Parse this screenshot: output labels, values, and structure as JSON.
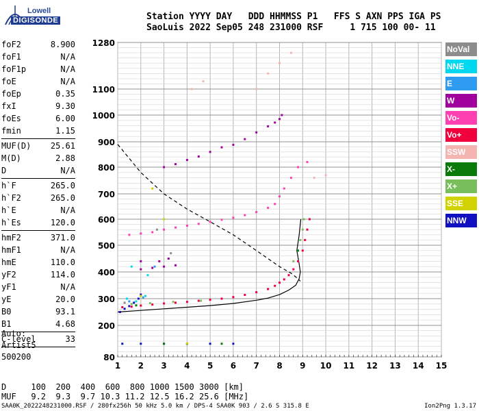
{
  "logo": {
    "line1": "Lowell",
    "line2": "DIGISONDE"
  },
  "header": {
    "line1": "Station YYYY DAY   DDD HHMMSS P1   FFS S AXN PPS IGA PS",
    "line2": "SaoLuis 2022 Sep05 248 231000 RSF     1 715 100 00- 11"
  },
  "params": [
    {
      "group": [
        [
          "foF2",
          "8.900"
        ],
        [
          "foF1",
          "N/A"
        ],
        [
          "foF1p",
          "N/A"
        ],
        [
          "foE",
          "N/A"
        ],
        [
          "foEp",
          "0.35"
        ],
        [
          "fxI",
          "9.30"
        ],
        [
          "foEs",
          "6.00"
        ],
        [
          "fmin",
          "1.15"
        ]
      ]
    },
    {
      "group": [
        [
          "MUF(D)",
          "25.61"
        ],
        [
          "M(D)",
          "2.88"
        ],
        [
          "D",
          "N/A"
        ]
      ]
    },
    {
      "group": [
        [
          "h`F",
          "265.0"
        ],
        [
          "h`F2",
          "265.0"
        ],
        [
          "h`E",
          "N/A"
        ],
        [
          "h`Es",
          "120.0"
        ]
      ]
    },
    {
      "group": [
        [
          "hmF2",
          "371.0"
        ],
        [
          "hmF1",
          "N/A"
        ],
        [
          "hmE",
          "110.0"
        ],
        [
          "yF2",
          "114.0"
        ],
        [
          "yF1",
          "N/A"
        ],
        [
          "yE",
          "20.0"
        ],
        [
          "B0",
          "93.1"
        ],
        [
          "B1",
          "4.68"
        ]
      ]
    },
    {
      "group": [
        [
          "C-level",
          "33"
        ]
      ]
    }
  ],
  "auto": {
    "label": "Auto:",
    "artist": "Artist5",
    "version": "500200"
  },
  "legend": [
    {
      "label": "NoVal",
      "color": "#8c8c8c"
    },
    {
      "label": "NNE",
      "color": "#00d8f0"
    },
    {
      "label": "E",
      "color": "#2d9bf0"
    },
    {
      "label": "W",
      "color": "#a0009c"
    },
    {
      "label": "Vo-",
      "color": "#ff40b0"
    },
    {
      "label": "Vo+",
      "color": "#f0003c"
    },
    {
      "label": "SSW",
      "color": "#f4b4b0"
    },
    {
      "label": "X-",
      "color": "#0a7a0a"
    },
    {
      "label": "X+",
      "color": "#78be5a"
    },
    {
      "label": "SSE",
      "color": "#d2d200"
    },
    {
      "label": "NNW",
      "color": "#1010c0"
    }
  ],
  "dmuf": {
    "line1": "D     100  200  400  600  800 1000 1500 3000 [km]",
    "line2": "MUF   9.2  9.3  9.7 10.3 11.2 12.5 16.2 25.6 [MHz]"
  },
  "footer": {
    "left": "SAA0K_2022248231000.RSF / 280fx256h 50 kHz 5.0 km / DPS-4 SAA0K 903 / 2.6 S 315.8 E",
    "right": "Ion2Png 1.3.17"
  },
  "chart_data": {
    "type": "scatter",
    "xlabel": "",
    "ylabel": "",
    "xlim": [
      1,
      15
    ],
    "ylim": [
      80,
      1280
    ],
    "xticks": [
      1,
      2,
      3,
      4,
      5,
      6,
      7,
      8,
      9,
      10,
      11,
      12,
      13,
      14,
      15
    ],
    "yticks": [
      80,
      200,
      300,
      400,
      500,
      600,
      700,
      800,
      900,
      1000,
      1100,
      1280
    ],
    "grid": true,
    "legend_position": "right",
    "series": [
      {
        "name": "Vo+",
        "color": "#f0003c",
        "points": [
          [
            1.2,
            268
          ],
          [
            1.6,
            270
          ],
          [
            2,
            274
          ],
          [
            2.5,
            278
          ],
          [
            3,
            282
          ],
          [
            3.5,
            285
          ],
          [
            4,
            288
          ],
          [
            4.5,
            292
          ],
          [
            5,
            296
          ],
          [
            5.5,
            300
          ],
          [
            6,
            306
          ],
          [
            6.5,
            314
          ],
          [
            7,
            324
          ],
          [
            7.5,
            336
          ],
          [
            7.8,
            348
          ],
          [
            8,
            360
          ],
          [
            8.2,
            372
          ],
          [
            8.4,
            388
          ],
          [
            8.6,
            410
          ],
          [
            8.8,
            440
          ],
          [
            9.0,
            480
          ],
          [
            9.1,
            520
          ],
          [
            9.2,
            560
          ],
          [
            9.3,
            600
          ]
        ]
      },
      {
        "name": "Vo-",
        "color": "#ff40b0",
        "points": [
          [
            1.5,
            540
          ],
          [
            2,
            545
          ],
          [
            2.5,
            550
          ],
          [
            3,
            560
          ],
          [
            3.5,
            568
          ],
          [
            4,
            575
          ],
          [
            4.5,
            582
          ],
          [
            5,
            590
          ],
          [
            5.5,
            598
          ],
          [
            6,
            606
          ],
          [
            6.5,
            616
          ],
          [
            7,
            628
          ],
          [
            7.5,
            645
          ],
          [
            7.8,
            660
          ],
          [
            8,
            690
          ],
          [
            8.2,
            720
          ],
          [
            8.5,
            760
          ],
          [
            8.8,
            800
          ],
          [
            9.2,
            820
          ]
        ]
      },
      {
        "name": "W",
        "color": "#a0009c",
        "points": [
          [
            3,
            800
          ],
          [
            3.5,
            812
          ],
          [
            4,
            828
          ],
          [
            4.5,
            842
          ],
          [
            5,
            860
          ],
          [
            5.5,
            878
          ],
          [
            6,
            888
          ],
          [
            6.5,
            910
          ],
          [
            7,
            935
          ],
          [
            7.5,
            958
          ],
          [
            7.8,
            972
          ],
          [
            8,
            985
          ],
          [
            8.1,
            1000
          ],
          [
            2,
            410
          ],
          [
            2.5,
            415
          ],
          [
            3,
            420
          ],
          [
            3.5,
            425
          ],
          [
            2,
            440
          ],
          [
            2.8,
            440
          ],
          [
            3.2,
            450
          ]
        ]
      },
      {
        "name": "X+",
        "color": "#78be5a",
        "points": [
          [
            8.6,
            440
          ],
          [
            8.8,
            480
          ],
          [
            8.9,
            520
          ],
          [
            9.0,
            560
          ],
          [
            9.05,
            600
          ],
          [
            1.6,
            280
          ],
          [
            2.4,
            283
          ],
          [
            3.4,
            288
          ],
          [
            4.6,
            292
          ]
        ]
      },
      {
        "name": "NNW",
        "color": "#1010c0",
        "points": [
          [
            1.1,
            250
          ],
          [
            1.3,
            262
          ],
          [
            1.5,
            272
          ],
          [
            1.7,
            285
          ],
          [
            1.9,
            300
          ],
          [
            2,
            315
          ],
          [
            1.2,
            130
          ],
          [
            2,
            130
          ],
          [
            3,
            130
          ],
          [
            4,
            130
          ],
          [
            5,
            130
          ],
          [
            6,
            130
          ]
        ]
      },
      {
        "name": "NNE",
        "color": "#00d8f0",
        "points": [
          [
            1.4,
            300
          ],
          [
            1.8,
            290
          ],
          [
            2.2,
            310
          ],
          [
            1.6,
            420
          ],
          [
            2.3,
            388
          ]
        ]
      },
      {
        "name": "SSW",
        "color": "#f4b4b0",
        "points": [
          [
            7,
            1100
          ],
          [
            7.5,
            1160
          ],
          [
            8,
            1200
          ],
          [
            8.5,
            1240
          ],
          [
            9.5,
            760
          ],
          [
            10,
            770
          ],
          [
            4.2,
            1100
          ],
          [
            4.7,
            1130
          ]
        ]
      },
      {
        "name": "X-",
        "color": "#0a7a0a",
        "points": [
          [
            1.8,
            275
          ],
          [
            3,
            130
          ],
          [
            4,
            130
          ],
          [
            5.5,
            130
          ],
          [
            8.8,
            480
          ]
        ]
      },
      {
        "name": "SSE",
        "color": "#d2d200",
        "points": [
          [
            2,
            310
          ],
          [
            3,
            600
          ],
          [
            4,
            131
          ],
          [
            2.5,
            720
          ]
        ]
      },
      {
        "name": "E",
        "color": "#2d9bf0",
        "points": [
          [
            1.5,
            290
          ],
          [
            2.1,
            305
          ],
          [
            2.6,
            420
          ]
        ]
      },
      {
        "name": "NoVal",
        "color": "#8c8c8c",
        "points": [
          [
            1.3,
            285
          ],
          [
            2.7,
            560
          ],
          [
            3.3,
            470
          ]
        ]
      }
    ],
    "curves": [
      {
        "style": "dashed",
        "points": [
          [
            1,
            890
          ],
          [
            2,
            780
          ],
          [
            3,
            700
          ],
          [
            4,
            640
          ],
          [
            5,
            590
          ],
          [
            6,
            540
          ],
          [
            6.5,
            510
          ],
          [
            7,
            480
          ],
          [
            7.5,
            450
          ],
          [
            8,
            420
          ],
          [
            8.5,
            395
          ],
          [
            8.8,
            375
          ],
          [
            8.9,
            365
          ]
        ]
      },
      {
        "style": "solid",
        "points": [
          [
            1,
            250
          ],
          [
            2,
            256
          ],
          [
            3,
            262
          ],
          [
            4,
            268
          ],
          [
            5,
            274
          ],
          [
            6,
            282
          ],
          [
            7,
            294
          ],
          [
            7.5,
            302
          ],
          [
            8,
            315
          ],
          [
            8.4,
            332
          ],
          [
            8.7,
            350
          ],
          [
            8.85,
            375
          ],
          [
            8.9,
            400
          ],
          [
            8.85,
            430
          ],
          [
            8.75,
            480
          ],
          [
            8.85,
            540
          ],
          [
            8.92,
            600
          ]
        ]
      }
    ]
  }
}
